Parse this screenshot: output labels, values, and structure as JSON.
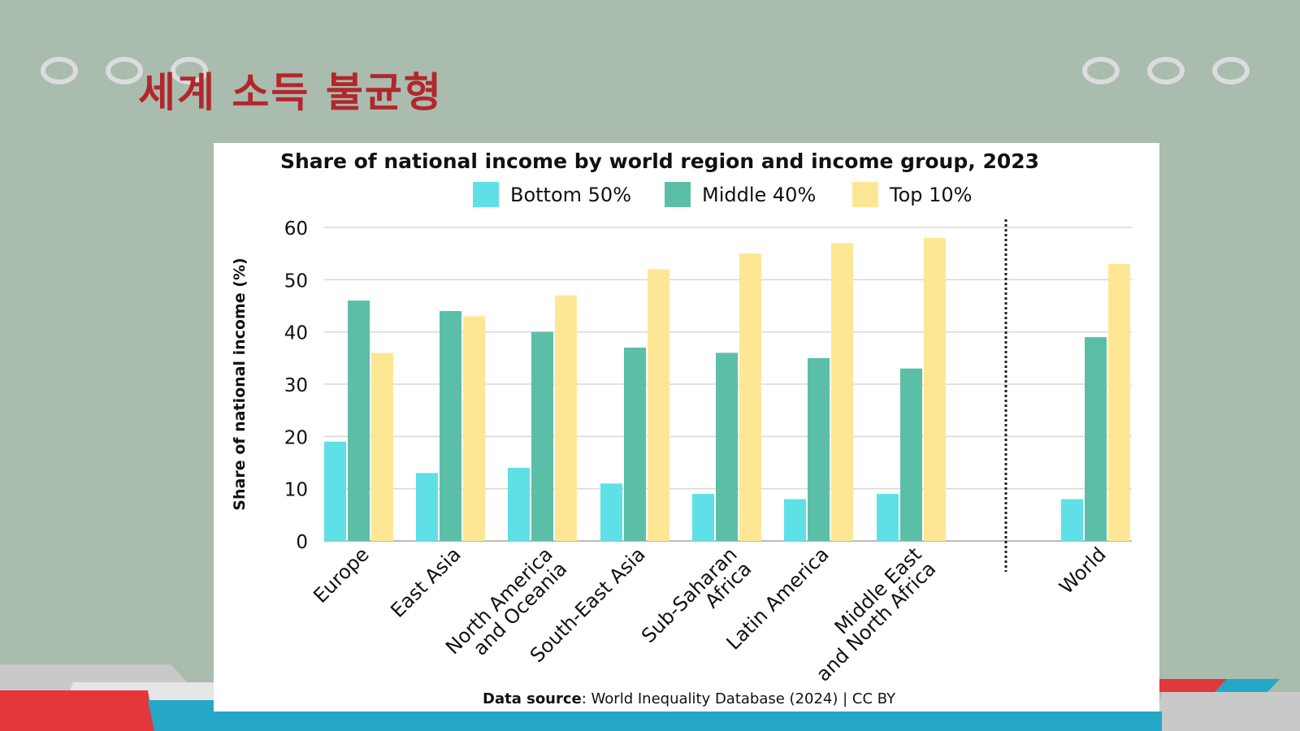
{
  "slide": {
    "title": "세계 소득 불균형",
    "accent_color": "#b3262d",
    "background_color": "#a9bcae"
  },
  "chart_data": {
    "type": "bar",
    "title": "Share of national income by world region and income group, 2023",
    "ylabel": "Share of national income (%)",
    "xlabel": "",
    "ylim": [
      0,
      60
    ],
    "yticks": [
      0,
      10,
      20,
      30,
      40,
      50,
      60
    ],
    "grid": true,
    "legend_position": "top",
    "categories": [
      [
        "Europe"
      ],
      [
        "East Asia"
      ],
      [
        "North America",
        "and Oceania"
      ],
      [
        "South-East Asia"
      ],
      [
        "Sub-Saharan",
        "Africa"
      ],
      [
        "Latin America"
      ],
      [
        "Middle East",
        "and North Africa"
      ],
      [
        "World"
      ]
    ],
    "separator_before_category": 7,
    "series": [
      {
        "name": "Bottom 50%",
        "color": "#5ee0e6",
        "values": [
          19,
          13,
          14,
          11,
          9,
          8,
          9,
          8
        ]
      },
      {
        "name": "Middle 40%",
        "color": "#5bbfa8",
        "values": [
          46,
          44,
          40,
          37,
          36,
          35,
          33,
          39
        ]
      },
      {
        "name": "Top 10%",
        "color": "#fee794",
        "values": [
          36,
          43,
          47,
          52,
          55,
          57,
          58,
          53
        ]
      }
    ],
    "source_label": "Data source",
    "source_text": ": World Inequality Database (2024) | CC BY"
  }
}
